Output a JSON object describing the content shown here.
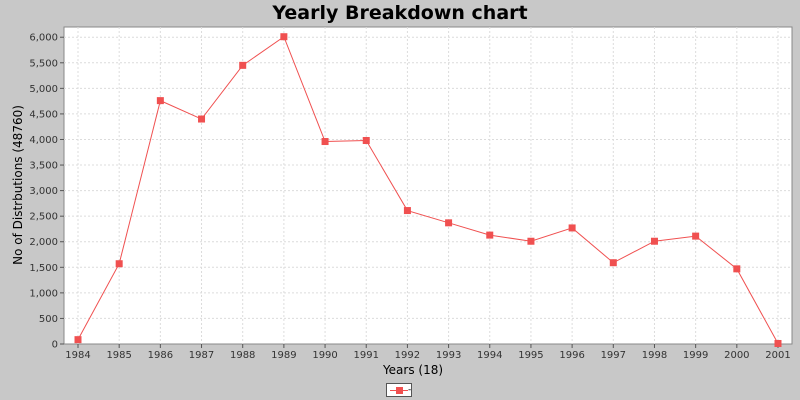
{
  "chart_data": {
    "type": "line",
    "title": "Yearly Breakdown chart",
    "xlabel": "Years (18)",
    "ylabel": "No of Distrbutions (48760)",
    "categories": [
      "1984",
      "1985",
      "1986",
      "1987",
      "1988",
      "1989",
      "1990",
      "1991",
      "1992",
      "1993",
      "1994",
      "1995",
      "1996",
      "1997",
      "1998",
      "1999",
      "2000",
      "2001"
    ],
    "series": [
      {
        "name": "",
        "values": [
          85,
          1570,
          4760,
          4400,
          5450,
          6010,
          3960,
          3980,
          2610,
          2370,
          2130,
          2010,
          2270,
          1590,
          2010,
          2110,
          1470,
          10
        ],
        "color": "#f05050"
      }
    ],
    "ylim": [
      0,
      6200
    ],
    "yticks": [
      0,
      500,
      1000,
      1500,
      2000,
      2500,
      3000,
      3500,
      4000,
      4500,
      5000,
      5500,
      6000
    ],
    "ytick_labels": [
      "0",
      "500",
      "1,000",
      "1,500",
      "2,000",
      "2,500",
      "3,000",
      "3,500",
      "4,000",
      "4,500",
      "5,000",
      "5,500",
      "6,000"
    ],
    "grid": true,
    "legend_position": "bottom",
    "legend_label": "-"
  }
}
